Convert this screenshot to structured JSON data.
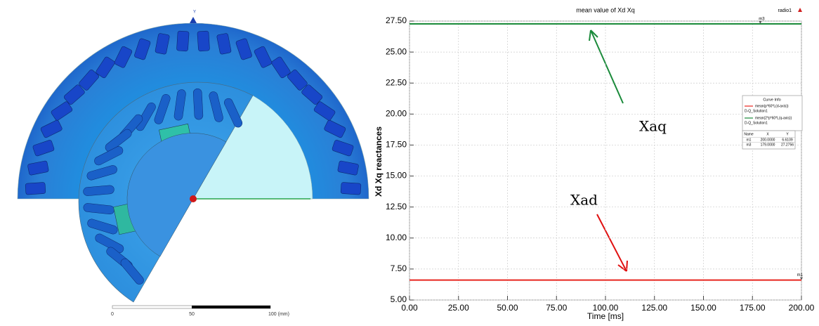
{
  "chart_data": {
    "type": "line",
    "title": "mean value of Xd Xq",
    "corner_label": "radio1",
    "x_label": "Time [ms]",
    "y_label": "Xd Xq reactances",
    "x": [
      0,
      200
    ],
    "series": [
      {
        "name": "mean(p*60*L(d-axis))",
        "source": "D-Q_Solution1",
        "color": "#e8251f",
        "values": [
          6.6109,
          6.6109
        ]
      },
      {
        "name": "mean(2*p*60*L(q-axis))",
        "source": "D-Q_Solution1",
        "color": "#1a8a3a",
        "values": [
          27.2756,
          27.2756
        ]
      }
    ],
    "xlim": [
      0,
      200
    ],
    "xticks": [
      {
        "value": 0,
        "label": "0.00"
      },
      {
        "value": 25,
        "label": "25.00"
      },
      {
        "value": 50,
        "label": "50.00"
      },
      {
        "value": 75,
        "label": "75.00"
      },
      {
        "value": 100,
        "label": "100.00"
      },
      {
        "value": 125,
        "label": "125.00"
      },
      {
        "value": 150,
        "label": "150.00"
      },
      {
        "value": 175,
        "label": "175.00"
      },
      {
        "value": 200,
        "label": "200.00"
      }
    ],
    "ylim": [
      5,
      27.5
    ],
    "yticks": [
      {
        "value": 5,
        "label": "5.00"
      },
      {
        "value": 7.5,
        "label": "7.50"
      },
      {
        "value": 10,
        "label": "10.00"
      },
      {
        "value": 12.5,
        "label": "12.50"
      },
      {
        "value": 15,
        "label": "15.00"
      },
      {
        "value": 17.5,
        "label": "17.50"
      },
      {
        "value": 20,
        "label": "20.00"
      },
      {
        "value": 22.5,
        "label": "22.50"
      },
      {
        "value": 25,
        "label": "25.00"
      },
      {
        "value": 27.5,
        "label": "27.50"
      }
    ],
    "grid": true,
    "legend_title": "Curve Info",
    "marker_headers": [
      "Name",
      "X",
      "Y"
    ],
    "markers": [
      {
        "name": "m1",
        "x": {
          "value": 200,
          "label": "200.0000"
        },
        "y": 6.6109
      },
      {
        "name": "m3",
        "x": {
          "value": 179,
          "label": "179.0000"
        },
        "y": 27.2756
      }
    ],
    "annotations": [
      "Xaq",
      "Xad"
    ]
  },
  "scale_bar": {
    "labels": [
      "0",
      "50",
      "100 (mm)"
    ]
  },
  "field_plot": {
    "axis_label": "Y"
  }
}
